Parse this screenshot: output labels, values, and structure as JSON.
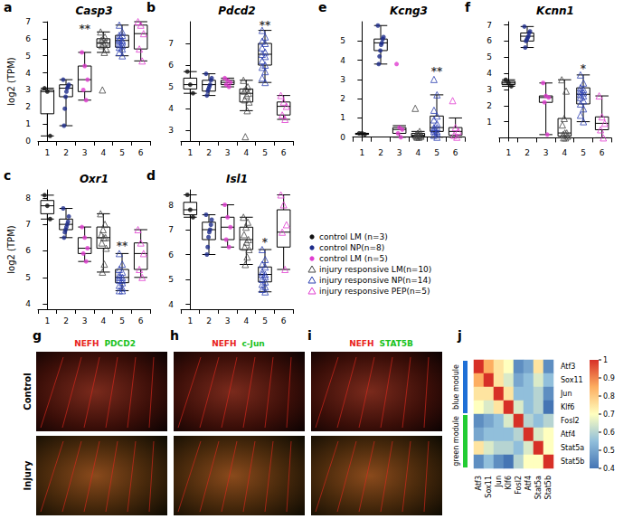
{
  "groups": [
    {
      "name": "control LM (n=3)",
      "color": "#111111",
      "marker": "circle"
    },
    {
      "name": "control NP(n=8)",
      "color": "#1c2a8a",
      "marker": "circle"
    },
    {
      "name": "control LM (n=5)",
      "color": "#e03cd0",
      "marker": "circle"
    },
    {
      "name": "injury responsive LM(n=10)",
      "color": "#444444",
      "marker": "open_triangle"
    },
    {
      "name": "injury responsive NP(n=14)",
      "color": "#2b3fb0",
      "marker": "open_triangle"
    },
    {
      "name": "injury responsive PEP(n=5)",
      "color": "#e03cd0",
      "marker": "open_triangle"
    }
  ],
  "chart_data": [
    {
      "type": "boxplot",
      "label": "a",
      "title": "Casp3",
      "ylabel": "log2 (TPM)",
      "categories": [
        "1",
        "2",
        "3",
        "4",
        "5",
        "6"
      ],
      "ylim": [
        0,
        7
      ],
      "yticks": [
        0,
        1,
        2,
        3,
        4,
        5,
        6,
        7
      ],
      "boxes": [
        [
          0.3,
          1.6,
          2.9,
          3.0,
          3.1
        ],
        [
          0.9,
          2.6,
          3.1,
          3.3,
          3.6
        ],
        [
          2.4,
          2.9,
          3.6,
          4.4,
          5.2
        ],
        [
          5.2,
          5.5,
          5.75,
          6.0,
          6.4
        ],
        [
          5.0,
          5.5,
          5.9,
          6.2,
          6.8
        ],
        [
          4.7,
          5.4,
          6.3,
          6.8,
          7.0
        ]
      ],
      "points": [
        [
          3.1,
          2.9,
          0.3
        ],
        [
          3.6,
          3.3,
          3.2,
          3.1,
          2.9,
          2.6,
          1.9,
          0.9
        ],
        [
          5.2,
          4.4,
          3.6,
          3.0,
          2.4
        ],
        [
          6.4,
          6.1,
          6.0,
          5.9,
          5.8,
          5.7,
          5.6,
          5.4,
          5.2,
          3.0
        ],
        [
          6.8,
          6.4,
          6.2,
          6.2,
          6.0,
          5.9,
          5.9,
          5.8,
          5.7,
          5.6,
          5.5,
          5.4,
          5.2,
          5.0
        ],
        [
          7.0,
          6.8,
          6.3,
          5.4,
          4.7
        ]
      ],
      "annotations": [
        {
          "text": "**",
          "category": "3",
          "y": 6.6
        }
      ]
    },
    {
      "type": "boxplot",
      "label": "b",
      "title": "Pdcd2",
      "categories": [
        "1",
        "2",
        "3",
        "4",
        "5",
        "6"
      ],
      "ylim": [
        2.5,
        8
      ],
      "yticks": [
        3,
        4,
        5,
        6,
        7
      ],
      "boxes": [
        [
          4.7,
          4.9,
          5.1,
          5.4,
          5.7
        ],
        [
          4.6,
          4.8,
          5.1,
          5.3,
          5.6
        ],
        [
          5.0,
          5.1,
          5.2,
          5.3,
          5.4
        ],
        [
          3.9,
          4.3,
          4.7,
          4.9,
          5.3
        ],
        [
          5.2,
          6.0,
          6.5,
          7.0,
          7.6
        ],
        [
          3.5,
          3.7,
          4.1,
          4.3,
          4.6
        ]
      ],
      "points": [
        [
          5.7,
          5.1,
          4.7
        ],
        [
          5.6,
          5.4,
          5.3,
          5.1,
          5.0,
          4.9,
          4.8,
          4.6
        ],
        [
          5.4,
          5.3,
          5.2,
          5.1,
          5.0
        ],
        [
          5.3,
          5.0,
          4.9,
          4.8,
          4.7,
          4.6,
          4.4,
          4.3,
          3.9,
          2.7
        ],
        [
          7.6,
          7.3,
          7.1,
          7.0,
          6.8,
          6.6,
          6.5,
          6.4,
          6.2,
          6.0,
          5.9,
          5.7,
          5.4,
          5.2
        ],
        [
          4.6,
          4.3,
          4.1,
          3.7,
          3.5
        ]
      ],
      "annotations": [
        {
          "text": "**",
          "category": "5",
          "y": 7.85
        }
      ]
    },
    {
      "type": "boxplot",
      "label": "e",
      "title": "Kcng3",
      "categories": [
        "1",
        "2",
        "3",
        "4",
        "5",
        "6"
      ],
      "ylim": [
        -0.2,
        6
      ],
      "yticks": [
        0,
        1,
        2,
        3,
        4,
        5
      ],
      "boxes": [
        [
          0.15,
          0.15,
          0.2,
          0.2,
          0.2
        ],
        [
          3.8,
          4.5,
          4.9,
          5.1,
          5.8
        ],
        [
          0,
          0.2,
          0.4,
          0.5,
          0.6
        ],
        [
          0,
          0.05,
          0.1,
          0.2,
          0.3
        ],
        [
          0,
          0.3,
          0.5,
          1.1,
          2.2
        ],
        [
          0,
          0.1,
          0.3,
          0.5,
          1.0
        ]
      ],
      "points": [
        [
          0.2,
          0.2,
          0.15
        ],
        [
          5.8,
          5.2,
          5.1,
          4.9,
          4.8,
          4.5,
          4.2,
          3.8
        ],
        [
          3.8,
          0.5,
          0.4,
          0.2,
          0
        ],
        [
          1.5,
          0.3,
          0.2,
          0.1,
          0.1,
          0.1,
          0.05,
          0.05,
          0,
          0
        ],
        [
          3.0,
          2.2,
          1.4,
          1.1,
          0.9,
          0.7,
          0.5,
          0.5,
          0.4,
          0.3,
          0.3,
          0.2,
          0.1,
          0
        ],
        [
          1.9,
          0.5,
          0.3,
          0.1,
          0
        ]
      ],
      "annotations": [
        {
          "text": "**",
          "category": "5",
          "y": 3.4
        }
      ]
    },
    {
      "type": "boxplot",
      "label": "f",
      "title": "Kcnn1",
      "categories": [
        "1",
        "2",
        "3",
        "4",
        "5",
        "6"
      ],
      "ylim": [
        -0.2,
        7.2
      ],
      "yticks": [
        1,
        2,
        3,
        4,
        5,
        6,
        7
      ],
      "boxes": [
        [
          3.2,
          3.3,
          3.4,
          3.5,
          3.6
        ],
        [
          5.6,
          6.0,
          6.3,
          6.5,
          6.9
        ],
        [
          0.2,
          2.2,
          2.5,
          2.6,
          3.4
        ],
        [
          0,
          0.1,
          0.3,
          1.2,
          3.6
        ],
        [
          1.0,
          2.1,
          2.7,
          3.1,
          3.9
        ],
        [
          0,
          0.5,
          0.9,
          1.3,
          2.6
        ]
      ],
      "points": [
        [
          3.6,
          3.4,
          3.2
        ],
        [
          6.9,
          6.6,
          6.5,
          6.3,
          6.2,
          6.1,
          6.0,
          5.6
        ],
        [
          3.4,
          2.6,
          2.5,
          2.2,
          0.2
        ],
        [
          3.6,
          2.9,
          1.2,
          0.8,
          0.3,
          0.3,
          0.2,
          0.1,
          0,
          0
        ],
        [
          3.9,
          3.4,
          3.1,
          3.0,
          2.9,
          2.8,
          2.7,
          2.6,
          2.5,
          2.3,
          2.1,
          1.8,
          1.4,
          1.0
        ],
        [
          2.6,
          1.3,
          0.9,
          0.5,
          0
        ]
      ],
      "annotations": [
        {
          "text": "*",
          "category": "5",
          "y": 4.3
        }
      ]
    },
    {
      "type": "boxplot",
      "label": "c",
      "title": "Oxr1",
      "ylabel": "log2 (TPM)",
      "categories": [
        "1",
        "2",
        "3",
        "4",
        "5",
        "6"
      ],
      "ylim": [
        3.8,
        8.3
      ],
      "yticks": [
        4,
        5,
        6,
        7,
        8
      ],
      "boxes": [
        [
          7.2,
          7.4,
          7.7,
          7.9,
          8.1
        ],
        [
          6.5,
          6.8,
          7.0,
          7.2,
          7.6
        ],
        [
          5.6,
          5.9,
          6.1,
          6.5,
          6.9
        ],
        [
          5.2,
          6.1,
          6.5,
          6.9,
          7.4
        ],
        [
          4.5,
          4.8,
          5.0,
          5.3,
          5.9
        ],
        [
          5.0,
          5.3,
          5.9,
          6.3,
          6.8
        ]
      ],
      "points": [
        [
          8.1,
          7.7,
          7.2
        ],
        [
          7.6,
          7.3,
          7.1,
          7.0,
          6.9,
          6.8,
          6.7,
          6.5
        ],
        [
          6.9,
          6.5,
          6.1,
          5.9,
          5.6
        ],
        [
          7.4,
          7.0,
          6.8,
          6.6,
          6.5,
          6.5,
          6.3,
          6.1,
          5.5,
          5.2
        ],
        [
          5.9,
          5.5,
          5.3,
          5.2,
          5.1,
          5.0,
          5.0,
          4.9,
          4.9,
          4.8,
          4.7,
          4.6,
          4.5,
          4.5
        ],
        [
          6.8,
          6.3,
          5.9,
          5.3,
          5.0
        ]
      ],
      "annotations": [
        {
          "text": "**",
          "category": "5",
          "y": 6.2
        }
      ]
    },
    {
      "type": "boxplot",
      "label": "d",
      "title": "Isl1",
      "categories": [
        "1",
        "2",
        "3",
        "4",
        "5",
        "6"
      ],
      "ylim": [
        3.8,
        8.6
      ],
      "yticks": [
        4,
        5,
        6,
        7,
        8
      ],
      "boxes": [
        [
          7.5,
          7.6,
          7.8,
          8.1,
          8.4
        ],
        [
          6.0,
          6.6,
          7.0,
          7.3,
          7.6
        ],
        [
          6.3,
          6.6,
          7.1,
          7.5,
          8.0
        ],
        [
          5.6,
          6.2,
          6.6,
          7.1,
          7.5
        ],
        [
          4.5,
          4.9,
          5.2,
          5.5,
          6.2
        ],
        [
          5.4,
          6.3,
          6.9,
          7.8,
          8.4
        ]
      ],
      "points": [
        [
          8.4,
          7.8,
          7.5
        ],
        [
          7.6,
          7.4,
          7.2,
          7.0,
          6.9,
          6.7,
          6.3,
          6.0
        ],
        [
          8.0,
          7.5,
          7.1,
          6.6,
          6.3
        ],
        [
          7.5,
          7.3,
          7.1,
          6.8,
          6.6,
          6.5,
          6.3,
          6.2,
          5.9,
          5.6
        ],
        [
          6.2,
          5.8,
          5.6,
          5.5,
          5.3,
          5.2,
          5.2,
          5.1,
          5.0,
          4.9,
          4.8,
          4.7,
          4.6,
          4.5
        ],
        [
          8.4,
          8.0,
          7.2,
          6.9,
          5.4
        ]
      ],
      "annotations": [
        {
          "text": "*",
          "category": "5",
          "y": 6.5
        }
      ]
    },
    {
      "type": "image",
      "rows": [
        "Control",
        "Injury"
      ],
      "panels": [
        {
          "label": "g",
          "stains": [
            "NEFH",
            "PDCD2"
          ]
        },
        {
          "label": "h",
          "stains": [
            "NEFH",
            "c-Jun"
          ]
        },
        {
          "label": "i",
          "stains": [
            "NEFH",
            "STAT5B"
          ]
        }
      ]
    },
    {
      "type": "heatmap",
      "label": "j",
      "categories": [
        "Atf3",
        "Sox11",
        "Jun",
        "Klf6",
        "Fosl2",
        "Atf4",
        "Stat5a",
        "Stat5b"
      ],
      "values": [
        [
          1,
          0.85,
          0.75,
          0.7,
          0.45,
          0.5,
          0.75,
          0.45
        ],
        [
          0.85,
          1,
          0.75,
          0.65,
          0.5,
          0.55,
          0.65,
          0.55
        ],
        [
          0.75,
          0.75,
          1,
          0.75,
          0.55,
          0.55,
          0.6,
          0.45
        ],
        [
          0.7,
          0.65,
          0.75,
          1,
          0.65,
          0.55,
          0.6,
          0.4
        ],
        [
          0.45,
          0.5,
          0.55,
          0.65,
          1,
          0.6,
          0.55,
          0.6
        ],
        [
          0.5,
          0.55,
          0.55,
          0.55,
          0.6,
          1,
          0.65,
          0.7
        ],
        [
          0.75,
          0.65,
          0.6,
          0.6,
          0.55,
          0.65,
          1,
          0.7
        ],
        [
          0.45,
          0.55,
          0.45,
          0.4,
          0.6,
          0.7,
          0.7,
          1
        ]
      ],
      "clim": [
        0.4,
        1
      ],
      "cticks": [
        0.4,
        0.5,
        0.6,
        0.7,
        0.8,
        0.9,
        1
      ],
      "modules": [
        {
          "name": "blue module",
          "color": "#1f6fd6",
          "genes": [
            "Atf3",
            "Sox11",
            "Jun",
            "Klf6"
          ]
        },
        {
          "name": "green module",
          "color": "#22cc33",
          "genes": [
            "Fosl2",
            "Atf4",
            "Stat5a",
            "Stat5b"
          ]
        }
      ]
    }
  ]
}
